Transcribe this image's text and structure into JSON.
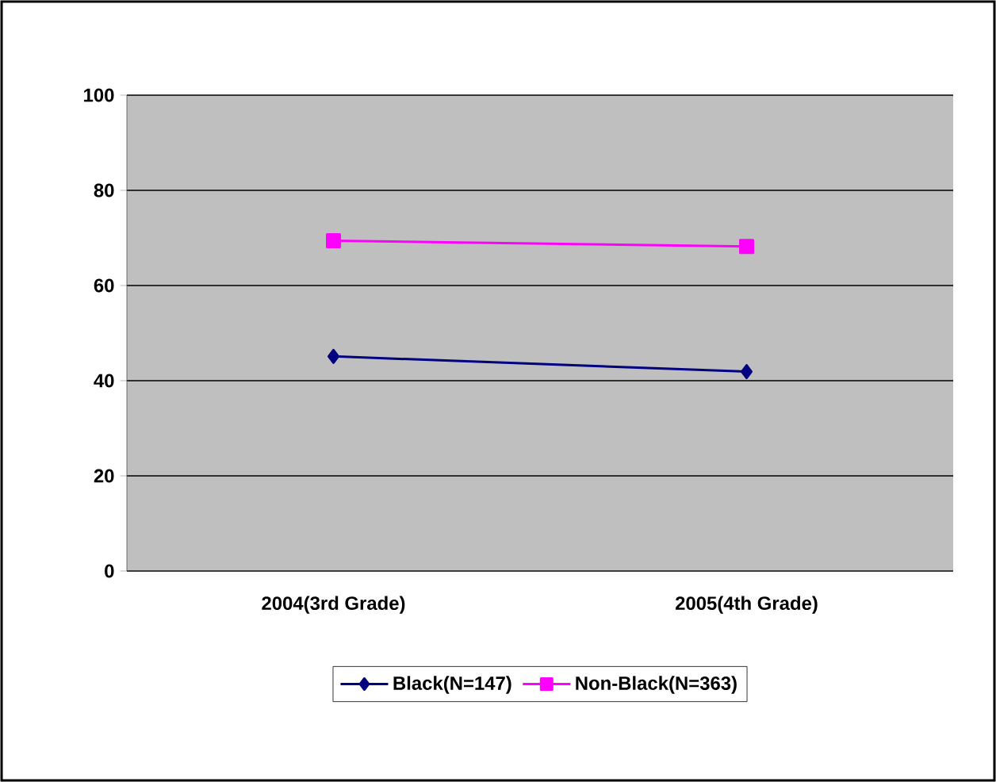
{
  "chart_data": {
    "type": "line",
    "categories": [
      "2004(3rd Grade)",
      "2005(4th Grade)"
    ],
    "series": [
      {
        "name": "Black(N=147)",
        "color": "#000080",
        "values": [
          45.1,
          41.9
        ],
        "marker": "diamond"
      },
      {
        "name": "Non-Black(N=363)",
        "color": "#ff00ff",
        "values": [
          69.4,
          68.2
        ],
        "marker": "square"
      }
    ],
    "ylim": [
      0,
      100
    ],
    "yticks": [
      0,
      20,
      40,
      60,
      80,
      100
    ],
    "grid": "y",
    "legend": "bottom"
  }
}
